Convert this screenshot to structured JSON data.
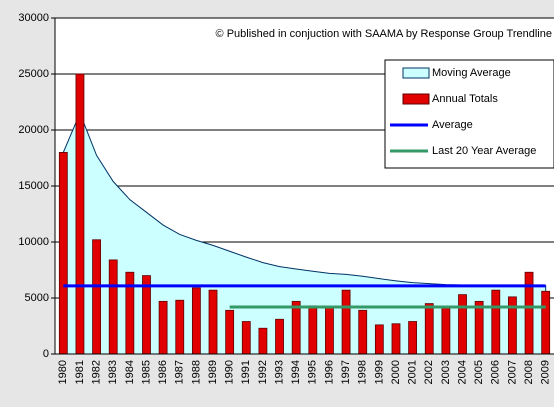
{
  "chart_data": {
    "type": "bar",
    "annotation": "© Published in conjuction with SAAMA by Response Group Trendline",
    "categories": [
      "1980",
      "1981",
      "1982",
      "1983",
      "1984",
      "1985",
      "1986",
      "1987",
      "1988",
      "1989",
      "1990",
      "1991",
      "1992",
      "1993",
      "1994",
      "1995",
      "1996",
      "1997",
      "1998",
      "1999",
      "2000",
      "2001",
      "2002",
      "2003",
      "2004",
      "2005",
      "2006",
      "2007",
      "2008",
      "2009"
    ],
    "series": [
      {
        "name": "Moving Average",
        "type": "area",
        "color": "#ccffff",
        "values": [
          18000,
          21500,
          17733,
          15400,
          13780,
          12650,
          11514,
          10675,
          10144,
          9700,
          9173,
          8650,
          8161,
          7800,
          7593,
          7387,
          7194,
          7111,
          6942,
          6725,
          6533,
          6368,
          6287,
          6195,
          6160,
          6104,
          6089,
          6054,
          6098,
          6080
        ]
      },
      {
        "name": "Annual Totals",
        "type": "bar",
        "color": "#e00000",
        "values": [
          18000,
          25000,
          10200,
          8400,
          7300,
          7000,
          4700,
          4800,
          5900,
          5700,
          3900,
          2900,
          2300,
          3100,
          4700,
          4300,
          4100,
          5700,
          3900,
          2600,
          2700,
          2900,
          4500,
          4100,
          5300,
          4700,
          5700,
          5100,
          7300,
          5600
        ]
      },
      {
        "name": "Average",
        "type": "line",
        "color": "#0000ff",
        "values": [
          6080,
          6080,
          6080,
          6080,
          6080,
          6080,
          6080,
          6080,
          6080,
          6080,
          6080,
          6080,
          6080,
          6080,
          6080,
          6080,
          6080,
          6080,
          6080,
          6080,
          6080,
          6080,
          6080,
          6080,
          6080,
          6080,
          6080,
          6080,
          6080,
          6080
        ]
      },
      {
        "name": "Last 20 Year Average",
        "type": "line",
        "color": "#339966",
        "values": [
          null,
          null,
          null,
          null,
          null,
          null,
          null,
          null,
          null,
          null,
          4200,
          4200,
          4200,
          4200,
          4200,
          4200,
          4200,
          4200,
          4200,
          4200,
          4200,
          4200,
          4200,
          4200,
          4200,
          4200,
          4200,
          4200,
          4200,
          4200
        ]
      }
    ],
    "ylim": [
      0,
      30000
    ],
    "yticks": [
      0,
      5000,
      10000,
      15000,
      20000,
      25000,
      30000
    ],
    "grid": true,
    "legend": "top-right"
  }
}
